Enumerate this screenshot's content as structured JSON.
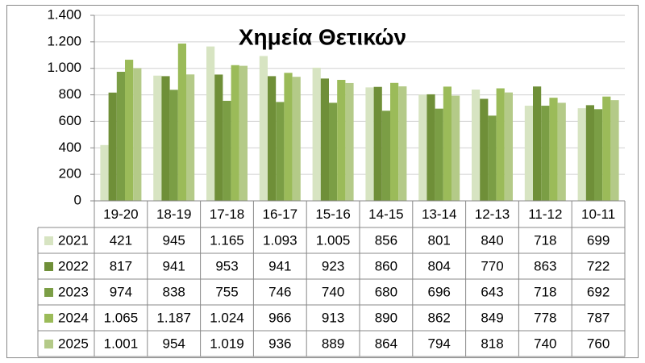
{
  "chart_data": {
    "type": "bar",
    "title": "Χημεία Θετικών",
    "categories": [
      "19-20",
      "18-19",
      "17-18",
      "16-17",
      "15-16",
      "14-15",
      "13-14",
      "12-13",
      "11-12",
      "10-11"
    ],
    "series": [
      {
        "name": "2021",
        "color": "#d7e4c2",
        "values": [
          421,
          945,
          1165,
          1093,
          1005,
          856,
          801,
          840,
          718,
          699
        ],
        "value_labels": [
          "421",
          "945",
          "1.165",
          "1.093",
          "1.005",
          "856",
          "801",
          "840",
          "718",
          "699"
        ]
      },
      {
        "name": "2022",
        "color": "#6f8f38",
        "values": [
          817,
          941,
          953,
          941,
          923,
          860,
          804,
          770,
          863,
          722
        ],
        "value_labels": [
          "817",
          "941",
          "953",
          "941",
          "923",
          "860",
          "804",
          "770",
          "863",
          "722"
        ]
      },
      {
        "name": "2023",
        "color": "#7b9e45",
        "values": [
          974,
          838,
          755,
          746,
          740,
          680,
          696,
          643,
          718,
          692
        ],
        "value_labels": [
          "974",
          "838",
          "755",
          "746",
          "740",
          "680",
          "696",
          "643",
          "718",
          "692"
        ]
      },
      {
        "name": "2024",
        "color": "#9bbb59",
        "values": [
          1065,
          1187,
          1024,
          966,
          913,
          890,
          862,
          849,
          778,
          787
        ],
        "value_labels": [
          "1.065",
          "1.187",
          "1.024",
          "966",
          "913",
          "890",
          "862",
          "849",
          "778",
          "787"
        ]
      },
      {
        "name": "2025",
        "color": "#b4ca88",
        "values": [
          1001,
          954,
          1019,
          936,
          889,
          864,
          794,
          818,
          740,
          760
        ],
        "value_labels": [
          "1.001",
          "954",
          "1.019",
          "936",
          "889",
          "864",
          "794",
          "818",
          "740",
          "760"
        ]
      }
    ],
    "ylim": [
      0,
      1400
    ],
    "yticks": [
      0,
      200,
      400,
      600,
      800,
      {
        "value": 1000,
        "label": "1.000"
      },
      {
        "value": 1200,
        "label": "1.200"
      },
      {
        "value": 1400,
        "label": "1.400"
      }
    ],
    "grid": true
  }
}
